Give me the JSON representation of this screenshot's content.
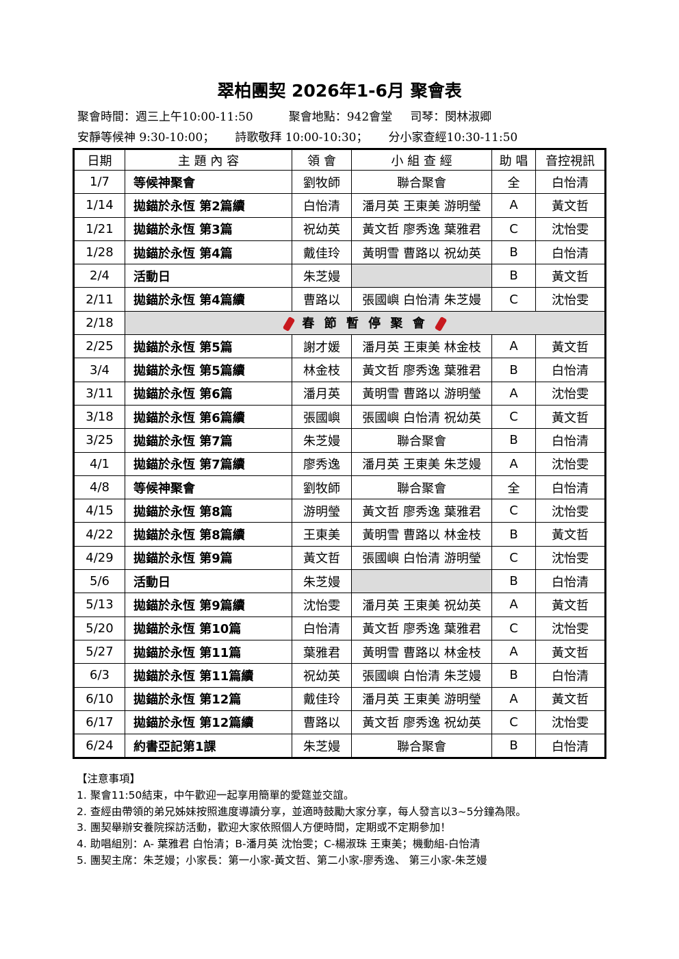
{
  "title": "翠柏團契 2026年1-6月 聚會表",
  "info": {
    "line1": [
      "聚會時間：週三上午10:00-11:50",
      "聚會地點：942會堂",
      "司琴：閔林淑卿"
    ],
    "line2": [
      "安靜等候神 9:30-10:00；",
      "詩歌敬拜 10:00-10:30；",
      "分小家查經10:30-11:50"
    ]
  },
  "table": {
    "headers": [
      "日期",
      "主 題 內 容",
      "領 會",
      "小 組 查 經",
      "助 唱",
      "音控視訊"
    ],
    "rows": [
      [
        "1/7",
        "等候神聚會",
        "劉牧師",
        "聯合聚會",
        "全",
        "白怡清"
      ],
      [
        "1/14",
        "拋錨於永恆 第2篇續",
        "白怡清",
        "潘月英 王東美 游明瑩",
        "A",
        "黃文哲"
      ],
      [
        "1/21",
        "拋錨於永恆 第3篇",
        "祝幼英",
        "黃文哲 廖秀逸 葉雅君",
        "C",
        "沈怡雯"
      ],
      [
        "1/28",
        "拋錨於永恆 第4篇",
        "戴佳玲",
        "黃明雪 曹路以 祝幼英",
        "B",
        "白怡清"
      ],
      [
        "2/4",
        "活動日",
        "朱芝嫚",
        "",
        "B",
        "黃文哲"
      ],
      [
        "2/11",
        "拋錨於永恆 第4篇續",
        "曹路以",
        "張國嶼 白怡清 朱芝嫚",
        "C",
        "沈怡雯"
      ],
      [
        "2/18",
        "春 節 暫 停 聚 會"
      ],
      [
        "2/25",
        "拋錨於永恆 第5篇",
        "謝才媛",
        "潘月英 王東美 林金枝",
        "A",
        "黃文哲"
      ],
      [
        "3/4",
        "拋錨於永恆 第5篇續",
        "林金枝",
        "黃文哲 廖秀逸 葉雅君",
        "B",
        "白怡清"
      ],
      [
        "3/11",
        "拋錨於永恆 第6篇",
        "潘月英",
        "黃明雪 曹路以 游明瑩",
        "A",
        "沈怡雯"
      ],
      [
        "3/18",
        "拋錨於永恆 第6篇續",
        "張國嶼",
        "張國嶼 白怡清 祝幼英",
        "C",
        "黃文哲"
      ],
      [
        "3/25",
        "拋錨於永恆 第7篇",
        "朱芝嫚",
        "聯合聚會",
        "B",
        "白怡清"
      ],
      [
        "4/1",
        "拋錨於永恆 第7篇續",
        "廖秀逸",
        "潘月英 王東美 朱芝嫚",
        "A",
        "沈怡雯"
      ],
      [
        "4/8",
        "等候神聚會",
        "劉牧師",
        "聯合聚會",
        "全",
        "白怡清"
      ],
      [
        "4/15",
        "拋錨於永恆 第8篇",
        "游明瑩",
        "黃文哲 廖秀逸 葉雅君",
        "C",
        "沈怡雯"
      ],
      [
        "4/22",
        "拋錨於永恆 第8篇續",
        "王東美",
        "黃明雪 曹路以 林金枝",
        "B",
        "黃文哲"
      ],
      [
        "4/29",
        "拋錨於永恆 第9篇",
        "黃文哲",
        "張國嶼 白怡清 游明瑩",
        "C",
        "沈怡雯"
      ],
      [
        "5/6",
        "活動日",
        "朱芝嫚",
        "",
        "B",
        "白怡清"
      ],
      [
        "5/13",
        "拋錨於永恆 第9篇續",
        "沈怡雯",
        "潘月英 王東美 祝幼英",
        "A",
        "黃文哲"
      ],
      [
        "5/20",
        "拋錨於永恆 第10篇",
        "白怡清",
        "黃文哲 廖秀逸 葉雅君",
        "C",
        "沈怡雯"
      ],
      [
        "5/27",
        "拋錨於永恆 第11篇",
        "葉雅君",
        "黃明雪 曹路以 林金枝",
        "A",
        "黃文哲"
      ],
      [
        "6/3",
        "拋錨於永恆 第11篇續",
        "祝幼英",
        "張國嶼 白怡清 朱芝嫚",
        "B",
        "白怡清"
      ],
      [
        "6/10",
        "拋錨於永恆 第12篇",
        "戴佳玲",
        "潘月英 王東美 游明瑩",
        "A",
        "黃文哲"
      ],
      [
        "6/17",
        "拋錨於永恆 第12篇續",
        "曹路以",
        "黃文哲 廖秀逸 祝幼英",
        "C",
        "沈怡雯"
      ],
      [
        "6/24",
        "約書亞記第1課",
        "朱芝嫚",
        "聯合聚會",
        "B",
        "白怡清"
      ]
    ]
  },
  "notes": {
    "heading": "【注意事項】",
    "items": [
      "1. 聚會11:50結束，中午歡迎一起享用簡單的愛筵並交誼。",
      "2. 查經由帶領的弟兄姊妹按照進度導讀分享，並適時鼓勵大家分享，每人發言以3~5分鐘為限。",
      "3. 團契舉辦安養院探訪活動，歡迎大家依照個人方便時間，定期或不定期參加！",
      "4. 助唱組別：A- 葉雅君 白怡清；B-潘月英 沈怡雯；C-楊淑珠 王東美；機動組-白怡清",
      "5. 團契主席：朱芝嫚；小家長：第一小家-黃文哲、第二小家-廖秀逸、 第三小家-朱芝嫚"
    ]
  },
  "colors": {
    "holiday_bg": "#dcdcdc",
    "firecracker": "#c8191e"
  }
}
